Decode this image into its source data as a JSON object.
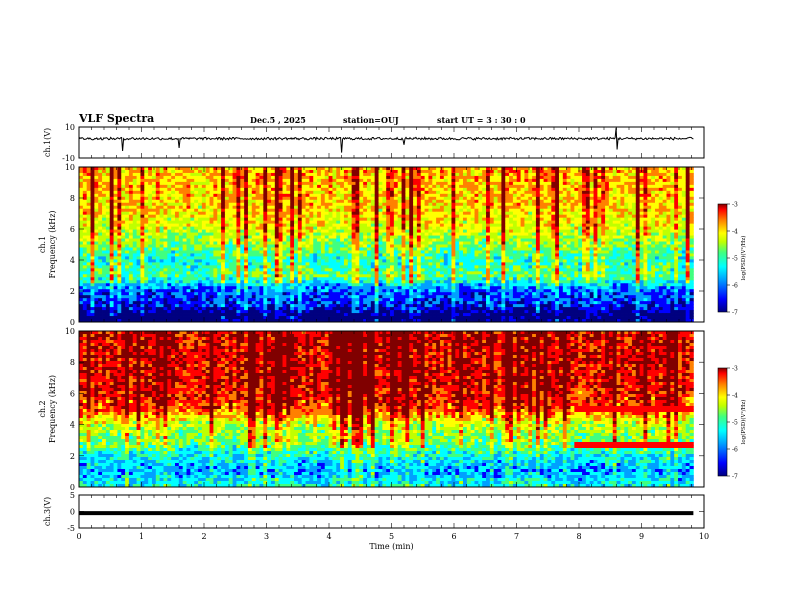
{
  "header": {
    "title": "VLF Spectra",
    "date": "Dec.5 , 2025",
    "station": "station=OUJ",
    "start": "start UT = 3 : 30 : 0"
  },
  "colors": {
    "cmap": [
      "#000080",
      "#0000ff",
      "#00a0ff",
      "#00ffff",
      "#40ff80",
      "#c0ff00",
      "#ffff00",
      "#ff8000",
      "#ff0000",
      "#800000"
    ],
    "trace": "#000000"
  },
  "chart_data": [
    {
      "type": "line",
      "id": "ch1_waveform",
      "ylabel": "ch.1(V)",
      "ylim": [
        -10,
        10
      ],
      "yticks": [
        10,
        -10
      ],
      "x_range_min": [
        0,
        9.83
      ],
      "baseline": 2.5,
      "spikes": [
        {
          "x": 0.7,
          "v": 8
        },
        {
          "x": 1.6,
          "v": 6
        },
        {
          "x": 4.2,
          "v": 9
        },
        {
          "x": 5.2,
          "v": 4
        },
        {
          "x": 8.6,
          "v": 7
        }
      ]
    },
    {
      "type": "heatmap",
      "id": "ch1_spectrogram",
      "ylabel": "ch.1\nFrequency (kHz)",
      "ylim": [
        0,
        10
      ],
      "yticks": [
        0,
        2,
        4,
        6,
        8,
        10
      ],
      "colorbar": {
        "label": "log(PSD)(V²/Hz)",
        "range": [
          -7,
          -3
        ],
        "ticks": [
          -3,
          -4,
          -5,
          -6,
          -7
        ]
      },
      "profile_kHz_logpsd": [
        [
          0,
          -7
        ],
        [
          0.5,
          -7
        ],
        [
          1,
          -6.5
        ],
        [
          2,
          -6.2
        ],
        [
          3,
          -5.2
        ],
        [
          4,
          -5.5
        ],
        [
          5,
          -5.0
        ],
        [
          6,
          -4.6
        ],
        [
          7,
          -4.4
        ],
        [
          8,
          -4.3
        ],
        [
          9,
          -4.2
        ],
        [
          10,
          -4.2
        ]
      ]
    },
    {
      "type": "heatmap",
      "id": "ch2_spectrogram",
      "ylabel": "ch.2\nFrequency (kHz)",
      "ylim": [
        0,
        10
      ],
      "yticks": [
        0,
        2,
        4,
        6,
        8,
        10
      ],
      "colorbar": {
        "label": "log(PSD)(V²/Hz)",
        "range": [
          -7,
          -3
        ],
        "ticks": [
          -3,
          -4,
          -5,
          -6,
          -7
        ]
      },
      "profile_kHz_logpsd": [
        [
          0,
          -5.5
        ],
        [
          1,
          -6.0
        ],
        [
          2,
          -5.6
        ],
        [
          3,
          -5.0
        ],
        [
          4,
          -4.8
        ],
        [
          5,
          -3.8
        ],
        [
          6,
          -3.6
        ],
        [
          7,
          -3.5
        ],
        [
          8,
          -3.5
        ],
        [
          9,
          -3.5
        ],
        [
          10,
          -3.5
        ]
      ],
      "lines_after_8min_kHz": [
        5.0,
        2.7
      ]
    },
    {
      "type": "line",
      "id": "ch3_waveform",
      "ylabel": "ch.3(V)",
      "ylim": [
        -5,
        5
      ],
      "yticks": [
        5,
        0,
        -5
      ],
      "baseline": -0.5
    }
  ],
  "xaxis": {
    "label": "Time (min)",
    "ticks": [
      0,
      1,
      2,
      3,
      4,
      5,
      6,
      7,
      8,
      9,
      10
    ],
    "range": [
      0,
      10
    ]
  }
}
